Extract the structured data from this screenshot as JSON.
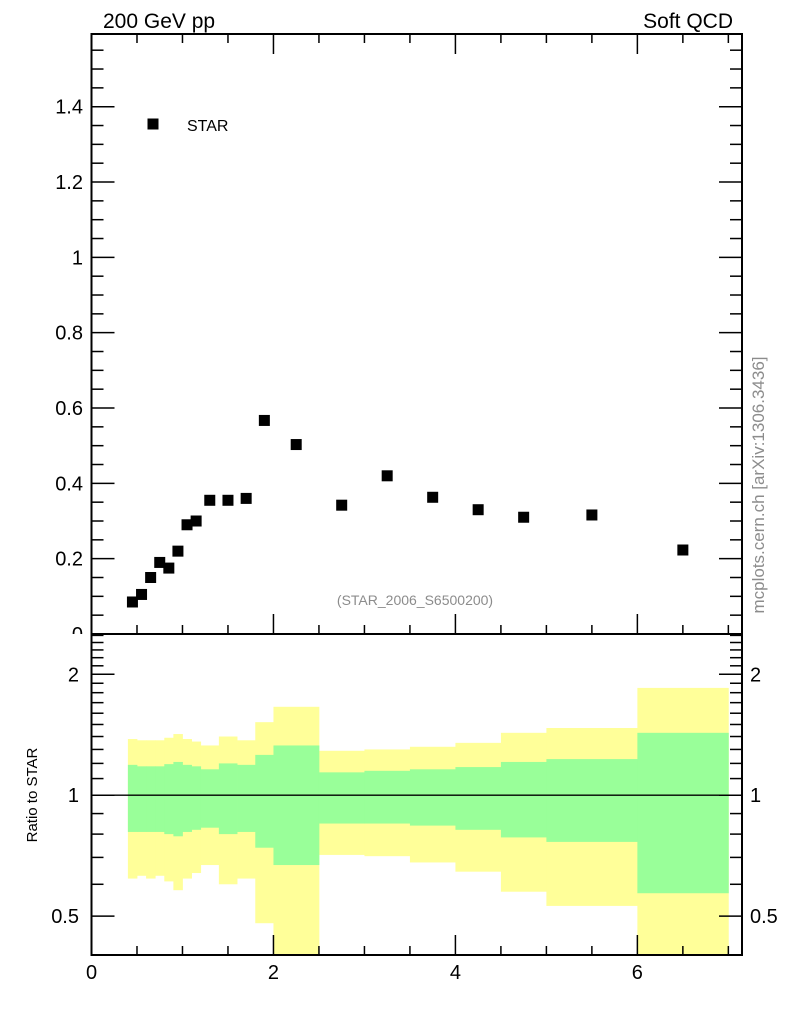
{
  "chart_data": {
    "type": "scatter",
    "title_left": "200 GeV pp",
    "title_right": "Soft QCD",
    "watermark": "(STAR_2006_S6500200)",
    "side_label": "mcplots.cern.ch [arXiv:1306.3436]",
    "xlim": [
      0,
      7.15
    ],
    "x_tick_labels": [
      "0",
      "2",
      "4",
      "6"
    ],
    "x_major_step": 2,
    "x_minor_step": 0.5,
    "main": {
      "ylim": [
        0,
        1.593
      ],
      "y_tick_labels": [
        "0",
        "0.2",
        "0.4",
        "0.6",
        "0.8",
        "1",
        "1.2",
        "1.4"
      ],
      "y_major_step": 0.2,
      "y_minor_step": 0.05,
      "legend": "top-left",
      "series": [
        {
          "name": "STAR",
          "marker": "square",
          "color": "#000000",
          "x": [
            0.45,
            0.55,
            0.65,
            0.75,
            0.85,
            0.95,
            1.05,
            1.15,
            1.3,
            1.5,
            1.7,
            1.9,
            2.25,
            2.75,
            3.25,
            3.75,
            4.25,
            4.75,
            5.5,
            6.5
          ],
          "y": [
            0.085,
            0.105,
            0.15,
            0.19,
            0.175,
            0.22,
            0.29,
            0.3,
            0.355,
            0.355,
            0.36,
            0.567,
            0.503,
            0.342,
            0.42,
            0.363,
            0.33,
            0.31,
            0.316,
            0.223
          ]
        }
      ]
    },
    "ratio": {
      "ylabel": "Ratio to STAR",
      "scale": "log",
      "ylim": [
        0.4,
        2.52
      ],
      "y_tick_labels": [
        {
          "value": 0.5,
          "label": "0.5"
        },
        {
          "value": 1,
          "label": "1"
        },
        {
          "value": 2,
          "label": "2"
        }
      ],
      "reference": 1,
      "bin_edges": [
        0.4,
        0.5,
        0.6,
        0.7,
        0.8,
        0.9,
        1.0,
        1.1,
        1.2,
        1.4,
        1.6,
        1.8,
        2.0,
        2.5,
        3.0,
        3.5,
        4.0,
        4.5,
        5.0,
        6.0,
        7.0
      ],
      "stat_band": {
        "color": "#99ff99",
        "lo": [
          0.81,
          0.81,
          0.81,
          0.81,
          0.8,
          0.79,
          0.81,
          0.82,
          0.83,
          0.8,
          0.81,
          0.74,
          0.67,
          0.85,
          0.85,
          0.84,
          0.82,
          0.785,
          0.765,
          0.57
        ],
        "hi": [
          1.19,
          1.18,
          1.18,
          1.18,
          1.195,
          1.21,
          1.19,
          1.18,
          1.16,
          1.2,
          1.19,
          1.26,
          1.33,
          1.14,
          1.15,
          1.16,
          1.175,
          1.21,
          1.23,
          1.43
        ]
      },
      "total_band": {
        "color": "#ffff99",
        "lo": [
          0.62,
          0.63,
          0.62,
          0.63,
          0.61,
          0.58,
          0.62,
          0.64,
          0.67,
          0.6,
          0.62,
          0.48,
          0.35,
          0.71,
          0.705,
          0.68,
          0.645,
          0.575,
          0.53,
          0.35
        ],
        "hi": [
          1.38,
          1.37,
          1.37,
          1.37,
          1.39,
          1.42,
          1.38,
          1.36,
          1.33,
          1.4,
          1.37,
          1.52,
          1.66,
          1.29,
          1.3,
          1.32,
          1.35,
          1.43,
          1.47,
          1.85
        ]
      }
    }
  }
}
